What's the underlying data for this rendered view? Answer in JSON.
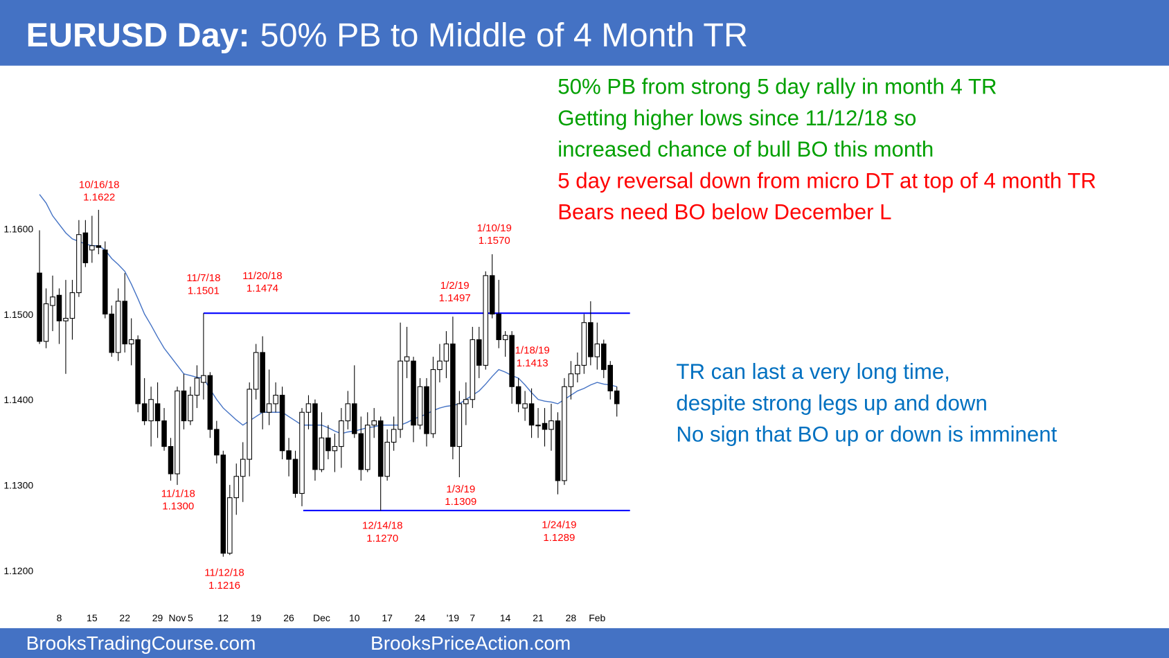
{
  "chart_data": {
    "type": "candlestick",
    "title": "EURUSD Day:",
    "subtitle": "50% PB to Middle of 4 Month TR",
    "categories": [
      null,
      null,
      null,
      "8",
      null,
      null,
      null,
      null,
      "15",
      null,
      null,
      null,
      null,
      "22",
      null,
      null,
      null,
      null,
      "29",
      null,
      null,
      "Nov",
      null,
      "5",
      null,
      null,
      null,
      null,
      "12",
      null,
      null,
      null,
      null,
      "19",
      null,
      null,
      null,
      null,
      "26",
      null,
      null,
      null,
      null,
      "Dec",
      null,
      null,
      null,
      null,
      "10",
      null,
      null,
      null,
      null,
      "17",
      null,
      null,
      null,
      null,
      "24",
      null,
      null,
      null,
      null,
      "'19",
      null,
      null,
      "7",
      null,
      null,
      null,
      null,
      "14",
      null,
      null,
      null,
      null,
      "21",
      null,
      null,
      null,
      null,
      "28",
      null,
      null,
      null,
      "Feb",
      null,
      null,
      null
    ],
    "open": [
      1.1548,
      1.1468,
      1.151,
      1.1522,
      1.1492,
      1.1495,
      1.1525,
      1.1595,
      1.1575,
      1.158,
      1.1575,
      1.15,
      1.1455,
      1.1515,
      1.1465,
      1.147,
      1.1395,
      1.1375,
      1.1395,
      1.1375,
      1.1345,
      1.1313,
      1.141,
      1.1375,
      1.1405,
      1.142,
      1.1428,
      1.1365,
      1.1335,
      1.122,
      1.1285,
      1.131,
      1.133,
      1.1412,
      1.1455,
      1.1385,
      1.1395,
      1.1405,
      1.134,
      1.133,
      1.129,
      1.1385,
      1.1395,
      1.1318,
      1.1355,
      1.134,
      1.1345,
      1.1375,
      1.1395,
      1.136,
      1.1318,
      1.137,
      1.1375,
      1.131,
      1.135,
      1.1365,
      1.1445,
      1.1445,
      1.137,
      1.1415,
      1.136,
      1.1435,
      1.1445,
      1.1465,
      1.1345,
      1.1395,
      1.14,
      1.147,
      1.144,
      1.1545,
      1.15,
      1.147,
      1.1475,
      1.1415,
      1.139,
      1.1395,
      1.137,
      1.1372,
      1.1365,
      1.1375,
      1.1305,
      1.1415,
      1.143,
      1.144,
      1.149,
      1.145,
      1.1465,
      1.144,
      1.141
    ],
    "high": [
      1.1598,
      1.153,
      1.1545,
      1.153,
      1.154,
      1.154,
      1.161,
      1.161,
      1.1615,
      1.1622,
      1.1585,
      1.151,
      1.153,
      1.1548,
      1.1495,
      1.1475,
      1.1425,
      1.1415,
      1.142,
      1.139,
      1.1355,
      1.1415,
      1.143,
      1.1415,
      1.144,
      1.1501,
      1.1432,
      1.1375,
      1.134,
      1.13,
      1.1325,
      1.135,
      1.142,
      1.1465,
      1.1474,
      1.1435,
      1.142,
      1.1415,
      1.1355,
      1.134,
      1.139,
      1.1405,
      1.14,
      1.1385,
      1.137,
      1.136,
      1.139,
      1.141,
      1.144,
      1.138,
      1.1385,
      1.139,
      1.138,
      1.1365,
      1.138,
      1.149,
      1.1485,
      1.145,
      1.1425,
      1.1425,
      1.145,
      1.1465,
      1.148,
      1.1497,
      1.141,
      1.142,
      1.1485,
      1.1485,
      1.155,
      1.157,
      1.154,
      1.148,
      1.148,
      1.1425,
      1.141,
      1.1413,
      1.139,
      1.139,
      1.1395,
      1.1385,
      1.1425,
      1.1445,
      1.1455,
      1.15,
      1.1515,
      1.149,
      1.147,
      1.1445,
      1.1415
    ],
    "low": [
      1.1465,
      1.146,
      1.148,
      1.1465,
      1.143,
      1.147,
      1.152,
      1.1555,
      1.156,
      1.157,
      1.1495,
      1.145,
      1.1445,
      1.1455,
      1.144,
      1.1385,
      1.137,
      1.1345,
      1.1355,
      1.134,
      1.1305,
      1.13,
      1.1365,
      1.137,
      1.139,
      1.14,
      1.1355,
      1.1325,
      1.1216,
      1.1218,
      1.1265,
      1.128,
      1.131,
      1.14,
      1.1365,
      1.137,
      1.1385,
      1.133,
      1.131,
      1.1285,
      1.1275,
      1.1365,
      1.1305,
      1.1315,
      1.133,
      1.1315,
      1.132,
      1.1365,
      1.1355,
      1.1305,
      1.1315,
      1.1355,
      1.127,
      1.1305,
      1.134,
      1.1355,
      1.1425,
      1.135,
      1.1365,
      1.1345,
      1.1355,
      1.142,
      1.1425,
      1.133,
      1.1309,
      1.137,
      1.139,
      1.1425,
      1.1435,
      1.1495,
      1.146,
      1.145,
      1.1395,
      1.1385,
      1.1375,
      1.1355,
      1.1355,
      1.1345,
      1.134,
      1.1289,
      1.13,
      1.14,
      1.142,
      1.143,
      1.144,
      1.1435,
      1.1425,
      1.14,
      1.138
    ],
    "close": [
      1.1468,
      1.1512,
      1.152,
      1.1492,
      1.1495,
      1.1525,
      1.1593,
      1.156,
      1.158,
      1.1578,
      1.15,
      1.1455,
      1.1515,
      1.1465,
      1.147,
      1.1395,
      1.1375,
      1.14,
      1.1375,
      1.1345,
      1.1313,
      1.141,
      1.1375,
      1.1405,
      1.1425,
      1.1428,
      1.1365,
      1.1335,
      1.122,
      1.1285,
      1.131,
      1.133,
      1.1412,
      1.1455,
      1.1385,
      1.1395,
      1.1405,
      1.134,
      1.133,
      1.129,
      1.1385,
      1.1395,
      1.1318,
      1.1355,
      1.134,
      1.1345,
      1.1375,
      1.1395,
      1.136,
      1.1318,
      1.137,
      1.1375,
      1.131,
      1.135,
      1.1365,
      1.1445,
      1.145,
      1.137,
      1.1415,
      1.136,
      1.1435,
      1.1445,
      1.1465,
      1.1345,
      1.1395,
      1.14,
      1.147,
      1.144,
      1.1545,
      1.15,
      1.147,
      1.1475,
      1.1415,
      1.1395,
      1.1395,
      1.137,
      1.137,
      1.1365,
      1.1375,
      1.1305,
      1.1415,
      1.143,
      1.144,
      1.149,
      1.145,
      1.1465,
      1.1435,
      1.141,
      1.1395
    ],
    "moving_average": {
      "color": "#4472c4",
      "values": [
        1.164,
        1.163,
        1.1615,
        1.1605,
        1.1595,
        1.1588,
        1.1585,
        1.1582,
        1.158,
        1.158,
        1.1575,
        1.1565,
        1.1558,
        1.155,
        1.1535,
        1.1518,
        1.15,
        1.1487,
        1.1473,
        1.146,
        1.145,
        1.144,
        1.143,
        1.1428,
        1.1426,
        1.1425,
        1.1412,
        1.14,
        1.139,
        1.1383,
        1.1376,
        1.137,
        1.1375,
        1.138,
        1.1385,
        1.1385,
        1.1385,
        1.1385,
        1.138,
        1.1375,
        1.137,
        1.137,
        1.137,
        1.137,
        1.1367,
        1.1363,
        1.136,
        1.1362,
        1.1363,
        1.1365,
        1.1367,
        1.1368,
        1.137,
        1.137,
        1.137,
        1.137,
        1.1373,
        1.1377,
        1.138,
        1.1383,
        1.1387,
        1.139,
        1.1392,
        1.1393,
        1.1395,
        1.14,
        1.1405,
        1.141,
        1.1418,
        1.1427,
        1.1435,
        1.1432,
        1.1428,
        1.1425,
        1.1417,
        1.1408,
        1.14,
        1.1398,
        1.1397,
        1.1395,
        1.14,
        1.1405,
        1.141,
        1.1413,
        1.1417,
        1.142,
        1.1418,
        1.1417,
        1.1415
      ]
    },
    "colors": {
      "up": "#ffffff",
      "down": "#000000",
      "level": "#0000ff",
      "annotation": "#ff0000"
    },
    "ylim": [
      1.1169,
      1.1789
    ],
    "yticks": [
      {
        "value": 1.12,
        "label": "1.1200"
      },
      {
        "value": 1.13,
        "label": "1.1300"
      },
      {
        "value": 1.14,
        "label": "1.1400"
      },
      {
        "value": 1.15,
        "label": "1.1500"
      },
      {
        "value": 1.16,
        "label": "1.1600"
      }
    ],
    "annotations": [
      {
        "date": "10/16/18",
        "price": {
          "value": 1.1622,
          "label": "1.1622"
        }
      },
      {
        "date": "11/7/18",
        "price": {
          "value": 1.1501,
          "label": "1.1501"
        }
      },
      {
        "date": "11/20/18",
        "price": {
          "value": 1.1474,
          "label": "1.1474"
        }
      },
      {
        "date": "11/1/18",
        "price": {
          "value": 1.13,
          "label": "1.1300"
        }
      },
      {
        "date": "11/12/18",
        "price": {
          "value": 1.1216,
          "label": "1.1216"
        }
      },
      {
        "date": "1/2/19",
        "price": {
          "value": 1.1497,
          "label": "1.1497"
        }
      },
      {
        "date": "12/14/18",
        "price": {
          "value": 1.127,
          "label": "1.1270"
        }
      },
      {
        "date": "1/3/19",
        "price": {
          "value": 1.1309,
          "label": "1.1309"
        }
      },
      {
        "date": "1/10/19",
        "price": {
          "value": 1.157,
          "label": "1.1570"
        }
      },
      {
        "date": "1/18/19",
        "price": {
          "value": 1.1413,
          "label": "1.1413"
        }
      },
      {
        "date": "1/24/19",
        "price": {
          "value": 1.1289,
          "label": "1.1289"
        }
      }
    ]
  },
  "notes": [
    {
      "text": "50% PB from strong 5 day rally in month 4 TR",
      "color": "#00a000"
    },
    {
      "text": "Getting higher lows since 11/12/18 so",
      "color": "#00a000"
    },
    {
      "text": "increased chance of bull BO this month",
      "color": "#00a000"
    },
    {
      "text": "5 day reversal down from micro DT at top of 4 month TR",
      "color": "#ff0000"
    },
    {
      "text": "Bears need BO below December L",
      "color": "#ff0000"
    },
    {
      "text": "TR can last a very long time,",
      "color": "#0070c0"
    },
    {
      "text": "despite strong legs up and down",
      "color": "#0070c0"
    },
    {
      "text": "No sign that BO up or down is imminent",
      "color": "#0070c0"
    }
  ],
  "footer": {
    "left": "BrooksTradingCourse.com",
    "right": "BrooksPriceAction.com"
  }
}
